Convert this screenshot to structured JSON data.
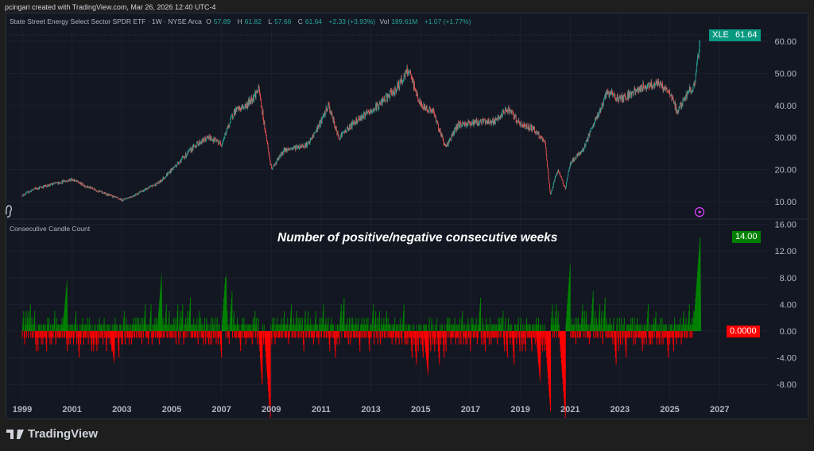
{
  "credit": "pcingari created with TradingView.com, Mar 26, 2026 12:40 UTC-4",
  "legend": {
    "name": "State Street Energy Select Sector SPDR ETF · 1W · NYSE Arca",
    "o_label": "O",
    "o": "57.89",
    "h_label": "H",
    "h": "61.82",
    "l_label": "L",
    "l": "57.66",
    "c_label": "C",
    "c": "61.64",
    "change": "+2.33 (+3.93%)",
    "vol_label": "Vol",
    "vol": "189.61M",
    "vol_change": "+1.07 (+1.77%)"
  },
  "badges": {
    "symbol": "XLE",
    "price": "61.64",
    "count_last": "14.00",
    "count_zero": "0.0000"
  },
  "indicator_title": "Consecutive Candle Count",
  "annotation": "Number of positive/negative consecutive weeks",
  "brand": "TradingView",
  "colors": {
    "up": "#26a69a",
    "down": "#ef5350",
    "count_up": "#008000",
    "count_down": "#ff0000",
    "badge_price": "#089981",
    "background": "#131722"
  },
  "chart_data": [
    {
      "type": "candlestick",
      "symbol": "XLE",
      "interval": "1W",
      "x_ticks": [
        "1999",
        "2001",
        "2003",
        "2005",
        "2007",
        "2009",
        "2011",
        "2013",
        "2015",
        "2017",
        "2019",
        "2021",
        "2023",
        "2025",
        "2027"
      ],
      "y_ticks": [
        "10.00",
        "20.00",
        "30.00",
        "40.00",
        "50.00",
        "60.00"
      ],
      "ylim": [
        7,
        63
      ],
      "scale": "linear",
      "grid": true,
      "approx_close_path": [
        [
          1999.0,
          12
        ],
        [
          1999.5,
          14
        ],
        [
          2000.5,
          16
        ],
        [
          2001.0,
          17
        ],
        [
          2001.5,
          15
        ],
        [
          2002.5,
          12
        ],
        [
          2003.0,
          10.5
        ],
        [
          2003.5,
          12
        ],
        [
          2004.5,
          16
        ],
        [
          2005.5,
          24
        ],
        [
          2006.0,
          28
        ],
        [
          2006.5,
          30
        ],
        [
          2007.0,
          28
        ],
        [
          2007.5,
          38
        ],
        [
          2008.0,
          40
        ],
        [
          2008.5,
          45
        ],
        [
          2008.8,
          30
        ],
        [
          2009.0,
          20
        ],
        [
          2009.5,
          26
        ],
        [
          2010.5,
          28
        ],
        [
          2011.0,
          35
        ],
        [
          2011.3,
          40
        ],
        [
          2011.7,
          30
        ],
        [
          2012.5,
          36
        ],
        [
          2013.0,
          38
        ],
        [
          2014.0,
          45
        ],
        [
          2014.5,
          51
        ],
        [
          2015.0,
          40
        ],
        [
          2015.5,
          38
        ],
        [
          2016.0,
          27
        ],
        [
          2016.5,
          34
        ],
        [
          2017.5,
          35
        ],
        [
          2018.0,
          35
        ],
        [
          2018.5,
          39
        ],
        [
          2019.0,
          34
        ],
        [
          2019.5,
          33
        ],
        [
          2020.0,
          28
        ],
        [
          2020.2,
          12
        ],
        [
          2020.5,
          20
        ],
        [
          2020.8,
          14
        ],
        [
          2021.0,
          22
        ],
        [
          2021.5,
          26
        ],
        [
          2022.0,
          35
        ],
        [
          2022.5,
          44
        ],
        [
          2023.0,
          42
        ],
        [
          2023.5,
          44
        ],
        [
          2024.0,
          46
        ],
        [
          2024.5,
          47
        ],
        [
          2025.0,
          44
        ],
        [
          2025.3,
          38
        ],
        [
          2025.8,
          45
        ],
        [
          2026.0,
          46
        ],
        [
          2026.23,
          61.64
        ]
      ],
      "last": {
        "open": 57.89,
        "high": 61.82,
        "low": 57.66,
        "close": 61.64
      }
    },
    {
      "type": "bar",
      "title": "Consecutive Candle Count",
      "y_ticks": [
        "16.00",
        "12.00",
        "8.00",
        "4.00",
        "0.00",
        "-4.00",
        "-8.00"
      ],
      "ylim": [
        -9.5,
        16.5
      ],
      "notable_values": [
        {
          "x": 2000.8,
          "value": 8
        },
        {
          "x": 2004.6,
          "value": 9
        },
        {
          "x": 2007.2,
          "value": 9
        },
        {
          "x": 2002.7,
          "value": -5
        },
        {
          "x": 2015.3,
          "value": -7
        },
        {
          "x": 2019.8,
          "value": -8
        },
        {
          "x": 2026.23,
          "value": 14
        }
      ],
      "last_value": 14
    }
  ]
}
